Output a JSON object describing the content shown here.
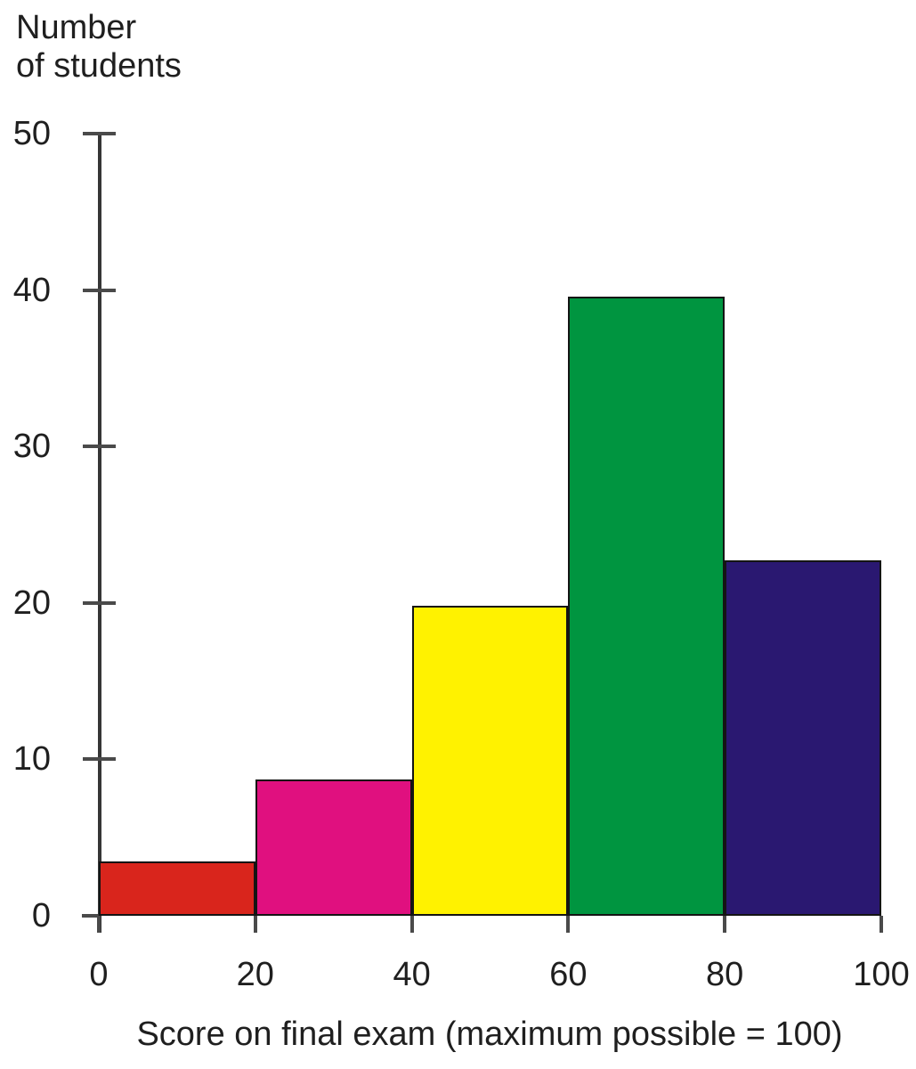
{
  "chart_data": {
    "type": "bar",
    "subtype": "histogram",
    "title": "",
    "ylabel": "Number of students",
    "ylabel_lines": [
      "Number",
      "of students"
    ],
    "xlabel": "Score on final exam (maximum possible = 100)",
    "bin_edges": [
      0,
      20,
      40,
      60,
      80,
      100
    ],
    "categories": [
      "0-20",
      "20-40",
      "40-60",
      "60-80",
      "80-100"
    ],
    "values": [
      3.5,
      8.7,
      19.8,
      39.6,
      22.7
    ],
    "bar_colors": [
      "#d9251c",
      "#e0107f",
      "#fff200",
      "#009540",
      "#2a1871"
    ],
    "x_ticks": [
      0,
      20,
      40,
      60,
      80,
      100
    ],
    "y_ticks": [
      0,
      10,
      20,
      30,
      40,
      50
    ],
    "xlim": [
      0,
      100
    ],
    "ylim": [
      0,
      50
    ],
    "grid": "off",
    "legend": "none",
    "axis_color": "#363636",
    "tick_color": "#4a4a4a",
    "bar_border_color": "#141414",
    "text_color": "#1f1f1f",
    "background_color": "#ffffff"
  }
}
